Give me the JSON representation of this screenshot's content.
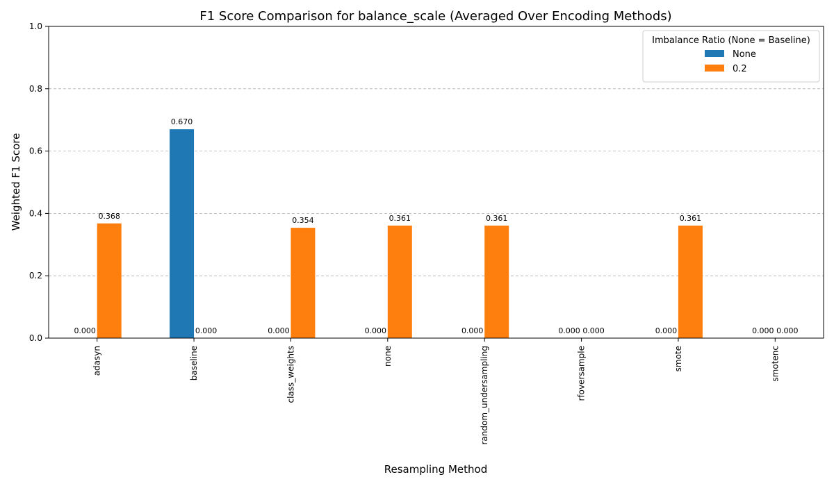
{
  "chart_data": {
    "type": "bar",
    "title": "F1 Score Comparison for balance_scale (Averaged Over Encoding Methods)",
    "xlabel": "Resampling Method",
    "ylabel": "Weighted F1 Score",
    "ylim": [
      0,
      1.0
    ],
    "yticks": [
      "0.0",
      "0.2",
      "0.4",
      "0.6",
      "0.8",
      "1.0"
    ],
    "grid": "y-dashed",
    "categories": [
      "adasyn",
      "baseline",
      "class_weights",
      "none",
      "random_undersampling",
      "rfoversample",
      "smote",
      "smotenc"
    ],
    "series": [
      {
        "name": "None",
        "color": "#1f77b4",
        "values": [
          0.0,
          0.67,
          0.0,
          0.0,
          0.0,
          0.0,
          0.0,
          0.0
        ],
        "labels": [
          "0.000",
          "0.670",
          "0.000",
          "0.000",
          "0.000",
          "0.000",
          "0.000",
          "0.000"
        ]
      },
      {
        "name": "0.2",
        "color": "#ff7f0e",
        "values": [
          0.368,
          0.0,
          0.354,
          0.361,
          0.361,
          0.0,
          0.361,
          0.0
        ],
        "labels": [
          "0.368",
          "0.000",
          "0.354",
          "0.361",
          "0.361",
          "0.000",
          "0.361",
          "0.000"
        ]
      }
    ],
    "legend": {
      "title": "Imbalance Ratio (None = Baseline)",
      "placement": "top-right"
    }
  }
}
